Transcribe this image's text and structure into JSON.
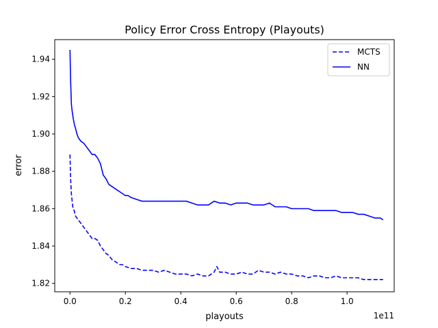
{
  "chart_data": {
    "type": "line",
    "title": "Policy Error Cross Entropy (Playouts)",
    "xlabel": "playouts",
    "ylabel": "error",
    "x_offset_text": "1e11",
    "xlim": [
      -0.055,
      1.17
    ],
    "ylim": [
      1.8155,
      1.9505
    ],
    "x_ticks": [
      0.0,
      0.2,
      0.4,
      0.6,
      0.8,
      1.0
    ],
    "x_tick_labels": [
      "0.0",
      "0.2",
      "0.4",
      "0.6",
      "0.8",
      "1.0"
    ],
    "y_ticks": [
      1.82,
      1.84,
      1.86,
      1.88,
      1.9,
      1.92,
      1.94
    ],
    "y_tick_labels": [
      "1.82",
      "1.84",
      "1.86",
      "1.88",
      "1.90",
      "1.92",
      "1.94"
    ],
    "legend_position": "top-right",
    "grid": false,
    "series": [
      {
        "name": "MCTS",
        "color": "#0000ff",
        "style": "dashed",
        "x": [
          0.0,
          0.002,
          0.005,
          0.01,
          0.015,
          0.02,
          0.03,
          0.04,
          0.05,
          0.06,
          0.07,
          0.08,
          0.09,
          0.1,
          0.11,
          0.12,
          0.13,
          0.14,
          0.15,
          0.16,
          0.17,
          0.18,
          0.19,
          0.2,
          0.22,
          0.24,
          0.26,
          0.28,
          0.3,
          0.32,
          0.34,
          0.36,
          0.38,
          0.4,
          0.42,
          0.44,
          0.46,
          0.48,
          0.5,
          0.52,
          0.53,
          0.54,
          0.56,
          0.58,
          0.6,
          0.62,
          0.64,
          0.66,
          0.68,
          0.7,
          0.72,
          0.74,
          0.76,
          0.78,
          0.8,
          0.82,
          0.84,
          0.86,
          0.88,
          0.9,
          0.92,
          0.94,
          0.96,
          0.98,
          1.0,
          1.02,
          1.04,
          1.06,
          1.08,
          1.1,
          1.12,
          1.13
        ],
        "values": [
          1.889,
          1.877,
          1.868,
          1.861,
          1.859,
          1.856,
          1.854,
          1.852,
          1.85,
          1.848,
          1.846,
          1.844,
          1.844,
          1.843,
          1.84,
          1.838,
          1.836,
          1.835,
          1.833,
          1.832,
          1.831,
          1.83,
          1.83,
          1.829,
          1.828,
          1.828,
          1.827,
          1.827,
          1.827,
          1.826,
          1.827,
          1.826,
          1.825,
          1.825,
          1.825,
          1.824,
          1.825,
          1.824,
          1.824,
          1.826,
          1.829,
          1.826,
          1.826,
          1.825,
          1.825,
          1.826,
          1.825,
          1.825,
          1.827,
          1.826,
          1.826,
          1.825,
          1.826,
          1.825,
          1.825,
          1.824,
          1.824,
          1.823,
          1.824,
          1.824,
          1.823,
          1.823,
          1.824,
          1.823,
          1.823,
          1.823,
          1.823,
          1.822,
          1.822,
          1.822,
          1.822,
          1.822
        ]
      },
      {
        "name": "NN",
        "color": "#0000ff",
        "style": "solid",
        "x": [
          0.0,
          0.002,
          0.005,
          0.008,
          0.012,
          0.016,
          0.02,
          0.025,
          0.03,
          0.04,
          0.05,
          0.06,
          0.07,
          0.08,
          0.09,
          0.1,
          0.11,
          0.12,
          0.13,
          0.14,
          0.15,
          0.16,
          0.17,
          0.18,
          0.19,
          0.2,
          0.21,
          0.22,
          0.24,
          0.26,
          0.28,
          0.3,
          0.32,
          0.34,
          0.36,
          0.38,
          0.4,
          0.42,
          0.44,
          0.46,
          0.48,
          0.5,
          0.52,
          0.54,
          0.56,
          0.58,
          0.6,
          0.62,
          0.64,
          0.66,
          0.68,
          0.7,
          0.72,
          0.74,
          0.76,
          0.78,
          0.8,
          0.82,
          0.84,
          0.86,
          0.88,
          0.9,
          0.92,
          0.94,
          0.96,
          0.98,
          1.0,
          1.02,
          1.04,
          1.06,
          1.08,
          1.1,
          1.12,
          1.13
        ],
        "values": [
          1.945,
          1.93,
          1.916,
          1.912,
          1.908,
          1.905,
          1.903,
          1.9,
          1.898,
          1.896,
          1.895,
          1.893,
          1.891,
          1.889,
          1.889,
          1.887,
          1.884,
          1.878,
          1.876,
          1.873,
          1.872,
          1.871,
          1.87,
          1.869,
          1.868,
          1.867,
          1.867,
          1.866,
          1.865,
          1.864,
          1.864,
          1.864,
          1.864,
          1.864,
          1.864,
          1.864,
          1.864,
          1.864,
          1.863,
          1.862,
          1.862,
          1.862,
          1.864,
          1.863,
          1.863,
          1.862,
          1.863,
          1.863,
          1.863,
          1.862,
          1.862,
          1.862,
          1.863,
          1.861,
          1.861,
          1.861,
          1.86,
          1.86,
          1.86,
          1.86,
          1.859,
          1.859,
          1.859,
          1.859,
          1.859,
          1.858,
          1.858,
          1.858,
          1.857,
          1.857,
          1.856,
          1.855,
          1.855,
          1.854
        ]
      }
    ]
  }
}
